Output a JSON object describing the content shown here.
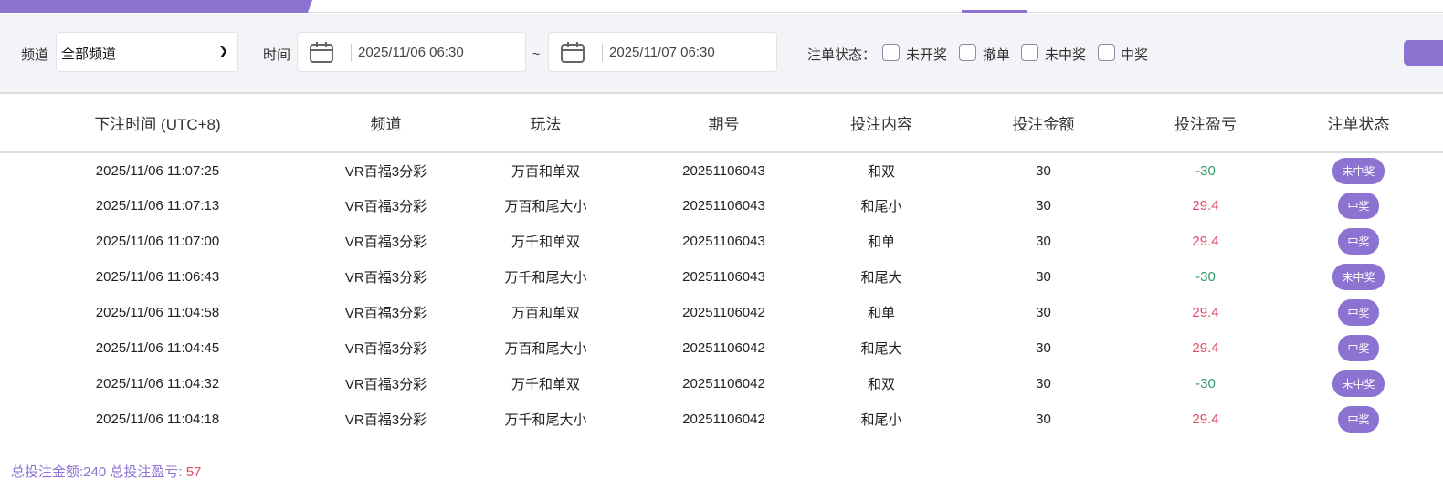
{
  "colors": {
    "accent": "#8c72d1",
    "loss": "#2e9a6a",
    "win": "#e04a63"
  },
  "filter": {
    "channel_label": "频道",
    "channel_value": "全部频道",
    "time_label": "时间",
    "start": "2025/11/06 06:30",
    "tilde": "~",
    "end": "2025/11/07 06:30",
    "status_label": "注单状态：",
    "statuses": [
      "未开奖",
      "撤单",
      "未中奖",
      "中奖"
    ]
  },
  "table": {
    "headers": [
      "下注时间 (UTC+8)",
      "频道",
      "玩法",
      "期号",
      "投注内容",
      "投注金额",
      "投注盈亏",
      "注单状态"
    ],
    "rows": [
      [
        "2025/11/06 11:07:25",
        "VR百福3分彩",
        "万百和单双",
        "20251106043",
        "和双",
        "30",
        "-30",
        "未中奖"
      ],
      [
        "2025/11/06 11:07:13",
        "VR百福3分彩",
        "万百和尾大小",
        "20251106043",
        "和尾小",
        "30",
        "29.4",
        "中奖"
      ],
      [
        "2025/11/06 11:07:00",
        "VR百福3分彩",
        "万千和单双",
        "20251106043",
        "和单",
        "30",
        "29.4",
        "中奖"
      ],
      [
        "2025/11/06 11:06:43",
        "VR百福3分彩",
        "万千和尾大小",
        "20251106043",
        "和尾大",
        "30",
        "-30",
        "未中奖"
      ],
      [
        "2025/11/06 11:04:58",
        "VR百福3分彩",
        "万百和单双",
        "20251106042",
        "和单",
        "30",
        "29.4",
        "中奖"
      ],
      [
        "2025/11/06 11:04:45",
        "VR百福3分彩",
        "万百和尾大小",
        "20251106042",
        "和尾大",
        "30",
        "29.4",
        "中奖"
      ],
      [
        "2025/11/06 11:04:32",
        "VR百福3分彩",
        "万千和单双",
        "20251106042",
        "和双",
        "30",
        "-30",
        "未中奖"
      ],
      [
        "2025/11/06 11:04:18",
        "VR百福3分彩",
        "万千和尾大小",
        "20251106042",
        "和尾小",
        "30",
        "29.4",
        "中奖"
      ]
    ]
  },
  "summary": {
    "amount_label": "总投注金额:",
    "amount": "240",
    "profit_label": " 总投注盈亏: ",
    "profit": "57"
  }
}
